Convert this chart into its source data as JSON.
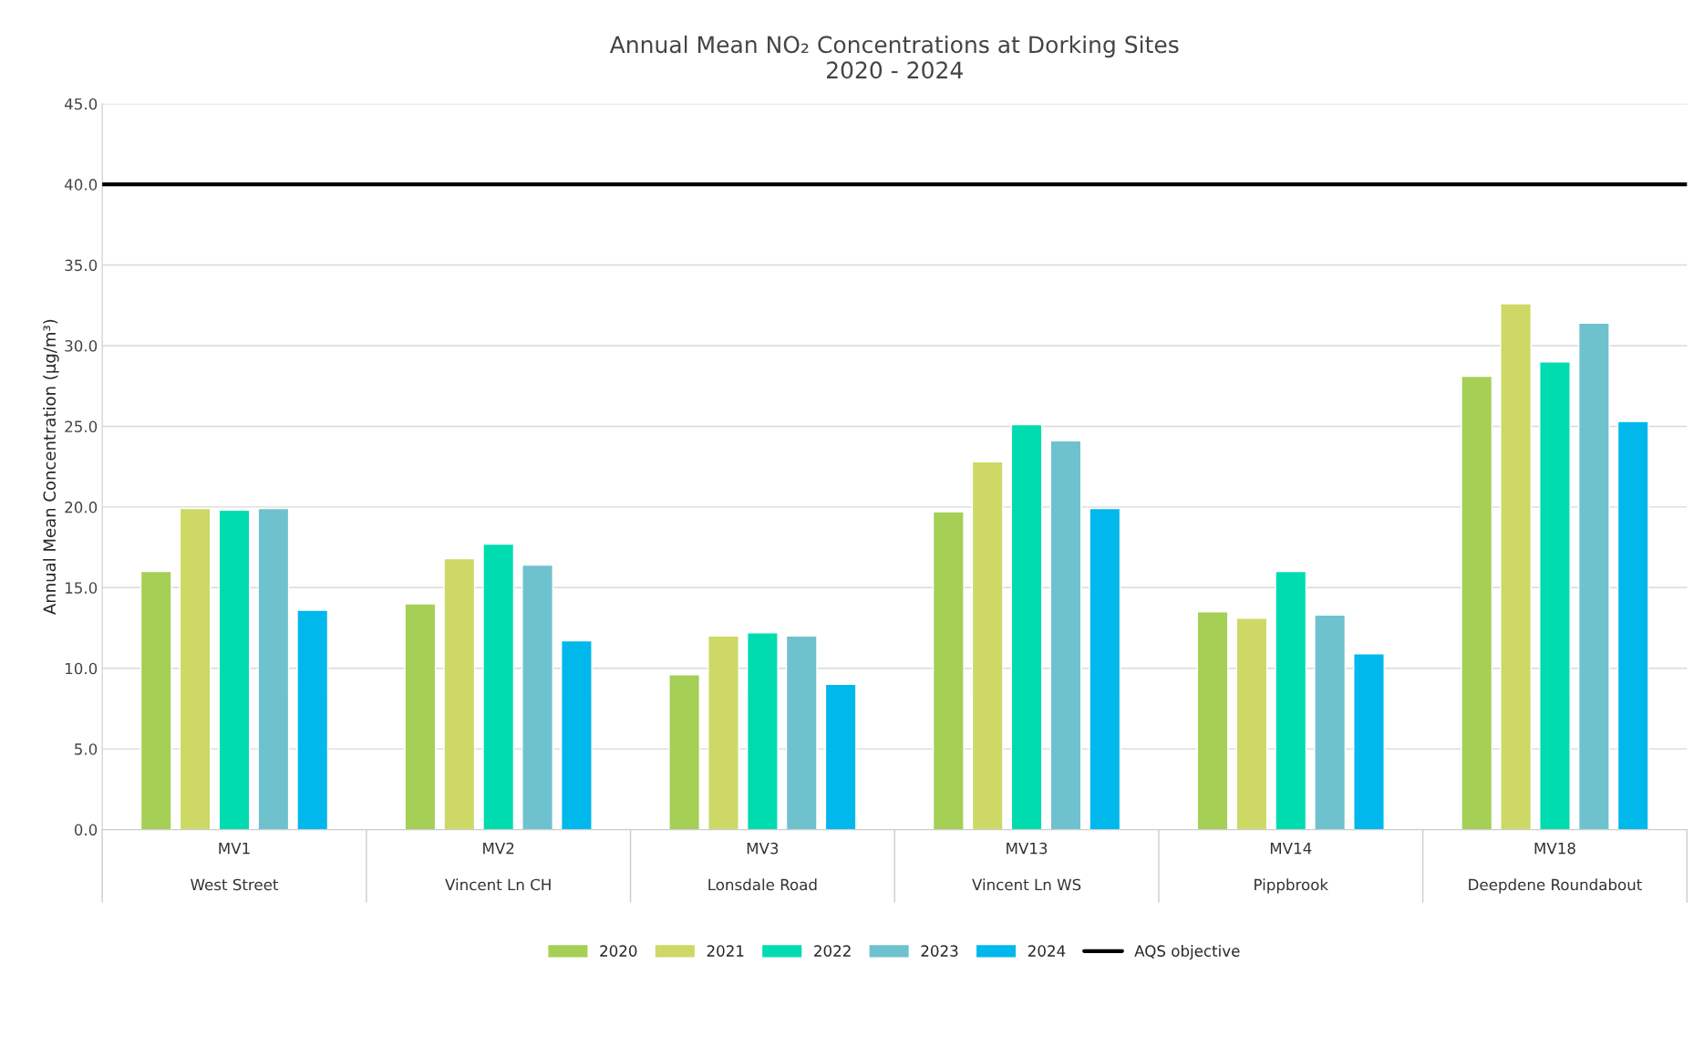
{
  "chart_data": {
    "type": "bar",
    "title": "Annual Mean NO₂ Concentrations at Dorking Sites\n2020 - 2024",
    "ylabel": "Annual Mean Concentration (µg/m³)",
    "categories": [
      "MV1\n\nWest Street",
      "MV2\n\nVincent Ln CH",
      "MV3\n\nLonsdale Road",
      "MV13\n\nVincent Ln WS",
      "MV14\n\nPippbrook",
      "MV18\n\nDeepdene Roundabout"
    ],
    "series": [
      {
        "name": "2020",
        "color": "#a5cf55",
        "values": [
          16.0,
          14.0,
          9.6,
          19.7,
          13.5,
          28.1
        ]
      },
      {
        "name": "2021",
        "color": "#cdd964",
        "values": [
          19.9,
          16.8,
          12.0,
          22.8,
          13.1,
          32.6
        ]
      },
      {
        "name": "2022",
        "color": "#00dcb0",
        "values": [
          19.8,
          17.7,
          12.2,
          25.1,
          16.0,
          29.0
        ]
      },
      {
        "name": "2023",
        "color": "#6ec2ce",
        "values": [
          19.9,
          16.4,
          12.0,
          24.1,
          13.3,
          31.4
        ]
      },
      {
        "name": "2024",
        "color": "#00b8ec",
        "values": [
          13.6,
          11.7,
          9.0,
          19.9,
          10.9,
          25.3
        ]
      }
    ],
    "ref_lines": [
      {
        "axis": "y",
        "value": 40,
        "label": "AQS objective",
        "color": "#000000",
        "line_style": "solid"
      }
    ],
    "ylim": [
      0,
      45
    ],
    "yticks": [
      {
        "value": 0,
        "label": "0.0"
      },
      {
        "value": 5,
        "label": "5.0"
      },
      {
        "value": 10,
        "label": "10.0"
      },
      {
        "value": 15,
        "label": "15.0"
      },
      {
        "value": 20,
        "label": "20.0"
      },
      {
        "value": 25,
        "label": "25.0"
      },
      {
        "value": 30,
        "label": "30.0"
      },
      {
        "value": 35,
        "label": "35.0"
      },
      {
        "value": 40,
        "label": "40.0"
      },
      {
        "value": 45,
        "label": "45.0"
      }
    ],
    "grid": "y",
    "legend": "bottom"
  }
}
